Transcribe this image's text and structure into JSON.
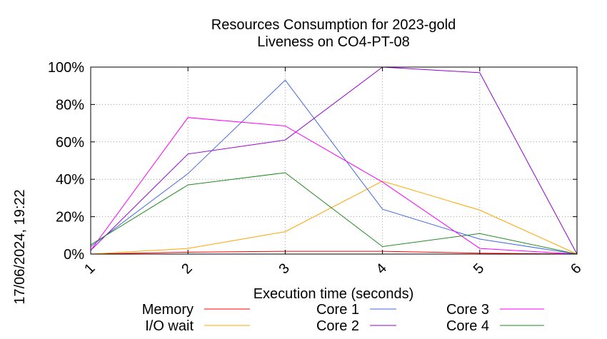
{
  "chart_data": {
    "type": "line",
    "title_line1": "Resources Consumption for 2023-gold",
    "title_line2": "Liveness on CO4-PT-08",
    "xlabel": "Execution time (seconds)",
    "ylabel": "",
    "side_label": "17/06/2024, 19:22",
    "x": [
      1,
      2,
      3,
      4,
      5,
      6
    ],
    "xlim": [
      1,
      6
    ],
    "ylim": [
      0,
      100
    ],
    "y_ticks": [
      0,
      20,
      40,
      60,
      80,
      100
    ],
    "y_tick_labels": [
      "0%",
      "20%",
      "40%",
      "60%",
      "80%",
      "100%"
    ],
    "x_tick_labels": [
      "1",
      "2",
      "3",
      "4",
      "5",
      "6"
    ],
    "grid": true,
    "legend_placement": "bottom",
    "series": [
      {
        "name": "Memory",
        "color": "#ff0000",
        "values": [
          0,
          1,
          1.5,
          1.5,
          0.5,
          0
        ]
      },
      {
        "name": "I/O wait",
        "color": "#ffa500",
        "values": [
          0,
          3,
          12,
          39,
          23.5,
          0
        ]
      },
      {
        "name": "Core 1",
        "color": "#4169e1",
        "values": [
          4,
          43,
          93,
          24,
          8,
          0
        ]
      },
      {
        "name": "Core 2",
        "color": "#9400d3",
        "values": [
          2,
          53.5,
          61,
          100,
          97,
          0
        ]
      },
      {
        "name": "Core 3",
        "color": "#ff00ff",
        "values": [
          2,
          73,
          68.5,
          38.5,
          3,
          0
        ]
      },
      {
        "name": "Core 4",
        "color": "#228b22",
        "values": [
          5,
          37,
          43.5,
          4,
          11,
          0
        ]
      }
    ]
  }
}
